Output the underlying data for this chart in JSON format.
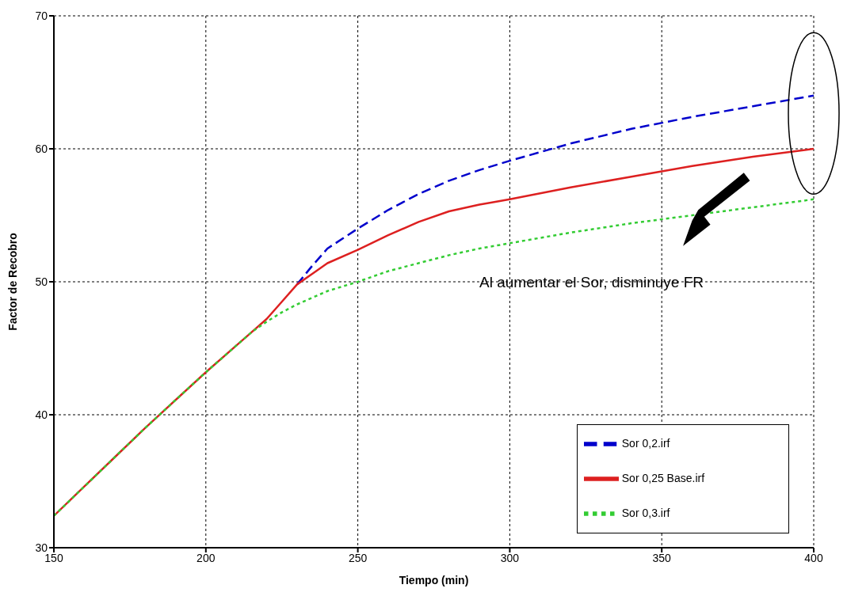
{
  "chart_data": {
    "type": "line",
    "xlabel": "Tiempo (min)",
    "ylabel": "Factor de Recobro",
    "x": [
      150,
      160,
      170,
      180,
      190,
      200,
      210,
      215,
      220,
      225,
      230,
      235,
      240,
      250,
      260,
      270,
      280,
      290,
      300,
      320,
      340,
      360,
      380,
      400
    ],
    "series": [
      {
        "name": "Sor 0,2.irf",
        "color": "#0000cc",
        "line_style": "dashed",
        "values": [
          null,
          null,
          null,
          null,
          null,
          null,
          null,
          null,
          null,
          null,
          49.8,
          51.2,
          52.5,
          54.0,
          55.4,
          56.6,
          57.6,
          58.4,
          59.1,
          60.4,
          61.5,
          62.4,
          63.2,
          64.0
        ]
      },
      {
        "name": "Sor 0,25 Base.irf",
        "color": "#dd2020",
        "line_style": "solid",
        "values": [
          32.4,
          34.6,
          36.8,
          39.0,
          41.1,
          43.2,
          45.2,
          46.2,
          47.2,
          48.5,
          49.8,
          50.6,
          51.4,
          52.4,
          53.5,
          54.5,
          55.3,
          55.8,
          56.2,
          57.1,
          57.9,
          58.7,
          59.4,
          60.0
        ]
      },
      {
        "name": "Sor 0,3.irf",
        "color": "#33cc33",
        "line_style": "dotted",
        "values": [
          32.4,
          34.6,
          36.8,
          39.0,
          41.1,
          43.2,
          45.2,
          46.2,
          47.0,
          47.7,
          48.3,
          48.8,
          49.3,
          50.0,
          50.8,
          51.4,
          52.0,
          52.5,
          52.9,
          53.7,
          54.4,
          55.0,
          55.6,
          56.2
        ]
      }
    ],
    "xlim": [
      150,
      400
    ],
    "xticks": [
      150,
      200,
      250,
      300,
      350,
      400
    ],
    "ylim": [
      30,
      70
    ],
    "yticks": [
      30,
      40,
      50,
      60,
      70
    ],
    "grid": true,
    "legend": "bottom right",
    "marker": "none",
    "annotations": [
      "Al aumentar el Sor, disminuye FR"
    ]
  }
}
